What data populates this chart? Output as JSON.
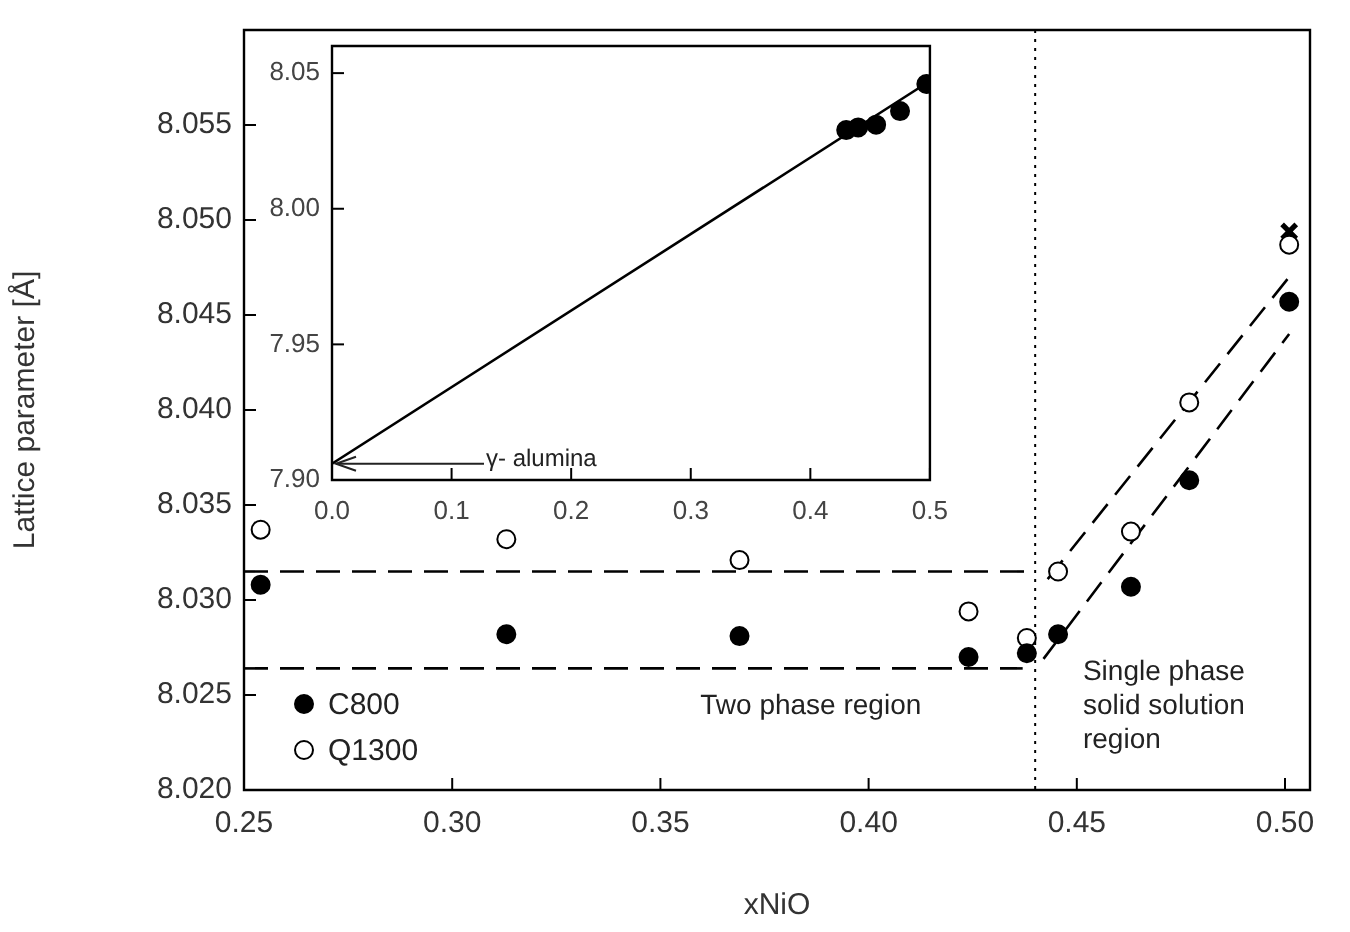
{
  "chart_data": [
    {
      "type": "scatter",
      "xlabel": "xNiO",
      "ylabel": "Lattice parameter [Å]",
      "xlim": [
        0.25,
        0.506
      ],
      "ylim": [
        8.02,
        8.06
      ],
      "xticks": [
        {
          "value": 0.25,
          "label": "0.25"
        },
        {
          "value": 0.3,
          "label": "0.30"
        },
        {
          "value": 0.35,
          "label": "0.35"
        },
        {
          "value": 0.4,
          "label": "0.40"
        },
        {
          "value": 0.45,
          "label": "0.45"
        },
        {
          "value": 0.5,
          "label": "0.50"
        }
      ],
      "yticks": [
        {
          "value": 8.02,
          "label": "8.020"
        },
        {
          "value": 8.025,
          "label": "8.025"
        },
        {
          "value": 8.03,
          "label": "8.030"
        },
        {
          "value": 8.035,
          "label": "8.035"
        },
        {
          "value": 8.04,
          "label": "8.040"
        },
        {
          "value": 8.045,
          "label": "8.045"
        },
        {
          "value": 8.05,
          "label": "8.050"
        },
        {
          "value": 8.055,
          "label": "8.055"
        }
      ],
      "marker": "circle",
      "grid": false,
      "legend": "bottom left",
      "series": [
        {
          "name": "C800",
          "color": "#000000",
          "x": [
            0.254,
            0.313,
            0.369,
            0.424,
            0.438,
            0.4455,
            0.463,
            0.477,
            0.501
          ],
          "values": [
            8.0308,
            8.0282,
            8.0281,
            8.027,
            8.0272,
            8.0282,
            8.0307,
            8.0363,
            8.0457
          ]
        },
        {
          "name": "Q1300",
          "color": "#ffffff",
          "x": [
            0.254,
            0.313,
            0.369,
            0.424,
            0.438,
            0.4455,
            0.463,
            0.477,
            0.501
          ],
          "values": [
            8.0337,
            8.0332,
            8.0321,
            8.0294,
            8.028,
            8.0315,
            8.0336,
            8.0404,
            8.0487
          ]
        },
        {
          "color": "#000000",
          "marker": "cross",
          "x": [
            0.501
          ],
          "values": [
            8.0494
          ]
        },
        {
          "type": "line",
          "color": "#000000",
          "line_style": "dashed",
          "marker": "none",
          "x": [
            0.25,
            0.438
          ],
          "values": [
            8.0315,
            8.0315
          ]
        },
        {
          "type": "line",
          "color": "#000000",
          "line_style": "dashed",
          "marker": "none",
          "x": [
            0.25,
            0.437
          ],
          "values": [
            8.0264,
            8.0264
          ]
        },
        {
          "type": "line",
          "color": "#000000",
          "line_style": "dashed",
          "marker": "none",
          "x": [
            0.443,
            0.501
          ],
          "values": [
            8.0311,
            8.047
          ]
        },
        {
          "type": "line",
          "color": "#000000",
          "line_style": "dashed",
          "marker": "none",
          "x": [
            0.442,
            0.501
          ],
          "values": [
            8.0269,
            8.044
          ]
        }
      ],
      "ref_lines": [
        {
          "axis": "x",
          "value": 0.44,
          "color": "#000000",
          "line_style": "dotted"
        }
      ],
      "annotations": [
        "Two phase region",
        "Single phase solid solution region"
      ]
    },
    {
      "type": "scatter",
      "xlim": [
        0,
        0.5
      ],
      "ylim": [
        7.9,
        8.06
      ],
      "xticks": [
        {
          "value": 0,
          "label": "0.0"
        },
        {
          "value": 0.1,
          "label": "0.1"
        },
        {
          "value": 0.2,
          "label": "0.2"
        },
        {
          "value": 0.3,
          "label": "0.3"
        },
        {
          "value": 0.4,
          "label": "0.4"
        },
        {
          "value": 0.5,
          "label": "0.5"
        }
      ],
      "yticks": [
        {
          "value": 7.9,
          "label": "7.90"
        },
        {
          "value": 7.95,
          "label": "7.95"
        },
        {
          "value": 8,
          "label": "8.00"
        },
        {
          "value": 8.05,
          "label": "8.05"
        }
      ],
      "marker": "circle",
      "grid": false,
      "series": [
        {
          "type": "line",
          "color": "#000000",
          "line_style": "solid",
          "marker": "none",
          "x": [
            0,
            0.496
          ],
          "values": [
            7.906,
            8.046
          ]
        },
        {
          "color": "#000000",
          "x": [
            0.43,
            0.44,
            0.455,
            0.475,
            0.497
          ],
          "values": [
            8.029,
            8.03,
            8.031,
            8.036,
            8.046
          ]
        }
      ],
      "annotations": [
        {
          "text": "γ- alumina",
          "x": 0,
          "y": 7.906
        }
      ]
    }
  ]
}
